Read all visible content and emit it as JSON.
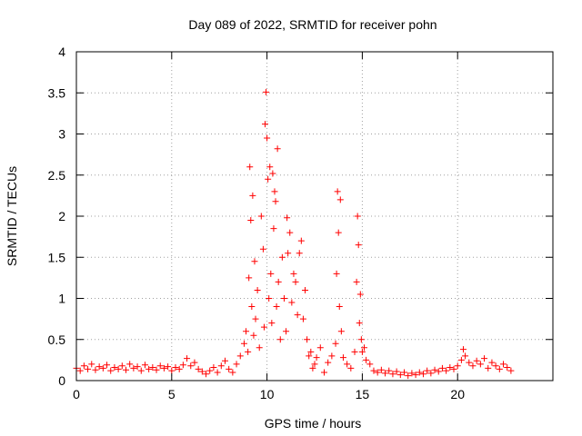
{
  "chart_data": {
    "type": "scatter",
    "title": "Day 089 of 2022, SRMTID for receiver pohn",
    "xlabel": "GPS time / hours",
    "ylabel": "SRMTID / TECUs",
    "xlim": [
      0,
      25
    ],
    "ylim": [
      0,
      4
    ],
    "x_ticks": [
      0,
      5,
      10,
      15,
      20
    ],
    "x_tick_labels": [
      "0",
      "5",
      "10",
      "15",
      "20"
    ],
    "y_ticks": [
      0,
      0.5,
      1,
      1.5,
      2,
      2.5,
      3,
      3.5,
      4
    ],
    "y_tick_labels": [
      "0",
      "0.5",
      "1",
      "1.5",
      "2",
      "2.5",
      "3",
      "3.5",
      "4"
    ],
    "grid": true,
    "marker": "+",
    "series": [
      {
        "name": "SRMTID",
        "color": "#ff0000",
        "marker": "+",
        "points": [
          [
            0.0,
            0.15
          ],
          [
            0.2,
            0.12
          ],
          [
            0.4,
            0.18
          ],
          [
            0.6,
            0.14
          ],
          [
            0.8,
            0.2
          ],
          [
            1.0,
            0.13
          ],
          [
            1.2,
            0.17
          ],
          [
            1.4,
            0.15
          ],
          [
            1.6,
            0.19
          ],
          [
            1.8,
            0.12
          ],
          [
            2.0,
            0.16
          ],
          [
            2.2,
            0.14
          ],
          [
            2.4,
            0.18
          ],
          [
            2.6,
            0.13
          ],
          [
            2.8,
            0.2
          ],
          [
            3.0,
            0.15
          ],
          [
            3.2,
            0.17
          ],
          [
            3.4,
            0.12
          ],
          [
            3.6,
            0.19
          ],
          [
            3.8,
            0.14
          ],
          [
            4.0,
            0.16
          ],
          [
            4.2,
            0.13
          ],
          [
            4.4,
            0.18
          ],
          [
            4.6,
            0.15
          ],
          [
            4.8,
            0.17
          ],
          [
            5.0,
            0.12
          ],
          [
            5.2,
            0.16
          ],
          [
            5.4,
            0.14
          ],
          [
            5.6,
            0.19
          ],
          [
            5.8,
            0.27
          ],
          [
            6.0,
            0.18
          ],
          [
            6.2,
            0.22
          ],
          [
            6.4,
            0.14
          ],
          [
            6.6,
            0.11
          ],
          [
            6.8,
            0.08
          ],
          [
            7.0,
            0.12
          ],
          [
            7.2,
            0.16
          ],
          [
            7.4,
            0.1
          ],
          [
            7.6,
            0.18
          ],
          [
            7.8,
            0.24
          ],
          [
            8.0,
            0.14
          ],
          [
            8.2,
            0.1
          ],
          [
            8.4,
            0.2
          ],
          [
            8.6,
            0.3
          ],
          [
            8.8,
            0.45
          ],
          [
            8.9,
            0.6
          ],
          [
            9.0,
            0.35
          ],
          [
            9.05,
            1.25
          ],
          [
            9.1,
            2.6
          ],
          [
            9.15,
            1.95
          ],
          [
            9.2,
            0.9
          ],
          [
            9.25,
            2.25
          ],
          [
            9.3,
            0.55
          ],
          [
            9.35,
            1.45
          ],
          [
            9.4,
            0.75
          ],
          [
            9.5,
            1.1
          ],
          [
            9.6,
            0.4
          ],
          [
            9.7,
            2.0
          ],
          [
            9.8,
            1.6
          ],
          [
            9.85,
            0.65
          ],
          [
            9.9,
            3.12
          ],
          [
            9.95,
            3.51
          ],
          [
            10.0,
            2.95
          ],
          [
            10.05,
            2.45
          ],
          [
            10.1,
            1.0
          ],
          [
            10.15,
            2.6
          ],
          [
            10.2,
            1.3
          ],
          [
            10.25,
            0.7
          ],
          [
            10.3,
            2.52
          ],
          [
            10.35,
            1.85
          ],
          [
            10.4,
            2.3
          ],
          [
            10.45,
            2.18
          ],
          [
            10.5,
            0.9
          ],
          [
            10.55,
            2.82
          ],
          [
            10.6,
            1.2
          ],
          [
            10.7,
            0.5
          ],
          [
            10.8,
            1.5
          ],
          [
            10.9,
            1.0
          ],
          [
            11.0,
            0.6
          ],
          [
            11.05,
            1.98
          ],
          [
            11.1,
            1.55
          ],
          [
            11.2,
            1.8
          ],
          [
            11.3,
            0.95
          ],
          [
            11.4,
            1.3
          ],
          [
            11.5,
            1.2
          ],
          [
            11.6,
            0.8
          ],
          [
            11.7,
            1.55
          ],
          [
            11.8,
            1.7
          ],
          [
            11.9,
            0.75
          ],
          [
            12.0,
            1.1
          ],
          [
            12.1,
            0.5
          ],
          [
            12.2,
            0.3
          ],
          [
            12.3,
            0.35
          ],
          [
            12.4,
            0.15
          ],
          [
            12.5,
            0.2
          ],
          [
            12.6,
            0.28
          ],
          [
            12.8,
            0.4
          ],
          [
            13.0,
            0.1
          ],
          [
            13.2,
            0.22
          ],
          [
            13.4,
            0.3
          ],
          [
            13.6,
            0.45
          ],
          [
            13.65,
            1.3
          ],
          [
            13.7,
            2.3
          ],
          [
            13.75,
            1.8
          ],
          [
            13.8,
            0.9
          ],
          [
            13.85,
            2.2
          ],
          [
            13.9,
            0.6
          ],
          [
            14.0,
            0.28
          ],
          [
            14.2,
            0.2
          ],
          [
            14.4,
            0.15
          ],
          [
            14.6,
            0.35
          ],
          [
            14.7,
            1.2
          ],
          [
            14.75,
            2.0
          ],
          [
            14.8,
            1.65
          ],
          [
            14.85,
            0.7
          ],
          [
            14.9,
            1.05
          ],
          [
            14.95,
            0.5
          ],
          [
            15.0,
            0.35
          ],
          [
            15.1,
            0.4
          ],
          [
            15.2,
            0.25
          ],
          [
            15.4,
            0.2
          ],
          [
            15.6,
            0.12
          ],
          [
            15.8,
            0.1
          ],
          [
            16.0,
            0.13
          ],
          [
            16.2,
            0.09
          ],
          [
            16.4,
            0.12
          ],
          [
            16.6,
            0.08
          ],
          [
            16.8,
            0.11
          ],
          [
            17.0,
            0.07
          ],
          [
            17.2,
            0.1
          ],
          [
            17.4,
            0.06
          ],
          [
            17.6,
            0.09
          ],
          [
            17.8,
            0.07
          ],
          [
            18.0,
            0.1
          ],
          [
            18.2,
            0.08
          ],
          [
            18.4,
            0.12
          ],
          [
            18.6,
            0.09
          ],
          [
            18.8,
            0.13
          ],
          [
            19.0,
            0.11
          ],
          [
            19.2,
            0.15
          ],
          [
            19.4,
            0.12
          ],
          [
            19.6,
            0.16
          ],
          [
            19.8,
            0.14
          ],
          [
            20.0,
            0.18
          ],
          [
            20.2,
            0.25
          ],
          [
            20.3,
            0.38
          ],
          [
            20.4,
            0.3
          ],
          [
            20.6,
            0.22
          ],
          [
            20.8,
            0.18
          ],
          [
            21.0,
            0.24
          ],
          [
            21.2,
            0.2
          ],
          [
            21.4,
            0.27
          ],
          [
            21.6,
            0.15
          ],
          [
            21.8,
            0.22
          ],
          [
            22.0,
            0.18
          ],
          [
            22.2,
            0.14
          ],
          [
            22.4,
            0.2
          ],
          [
            22.6,
            0.16
          ],
          [
            22.8,
            0.12
          ]
        ]
      }
    ]
  }
}
